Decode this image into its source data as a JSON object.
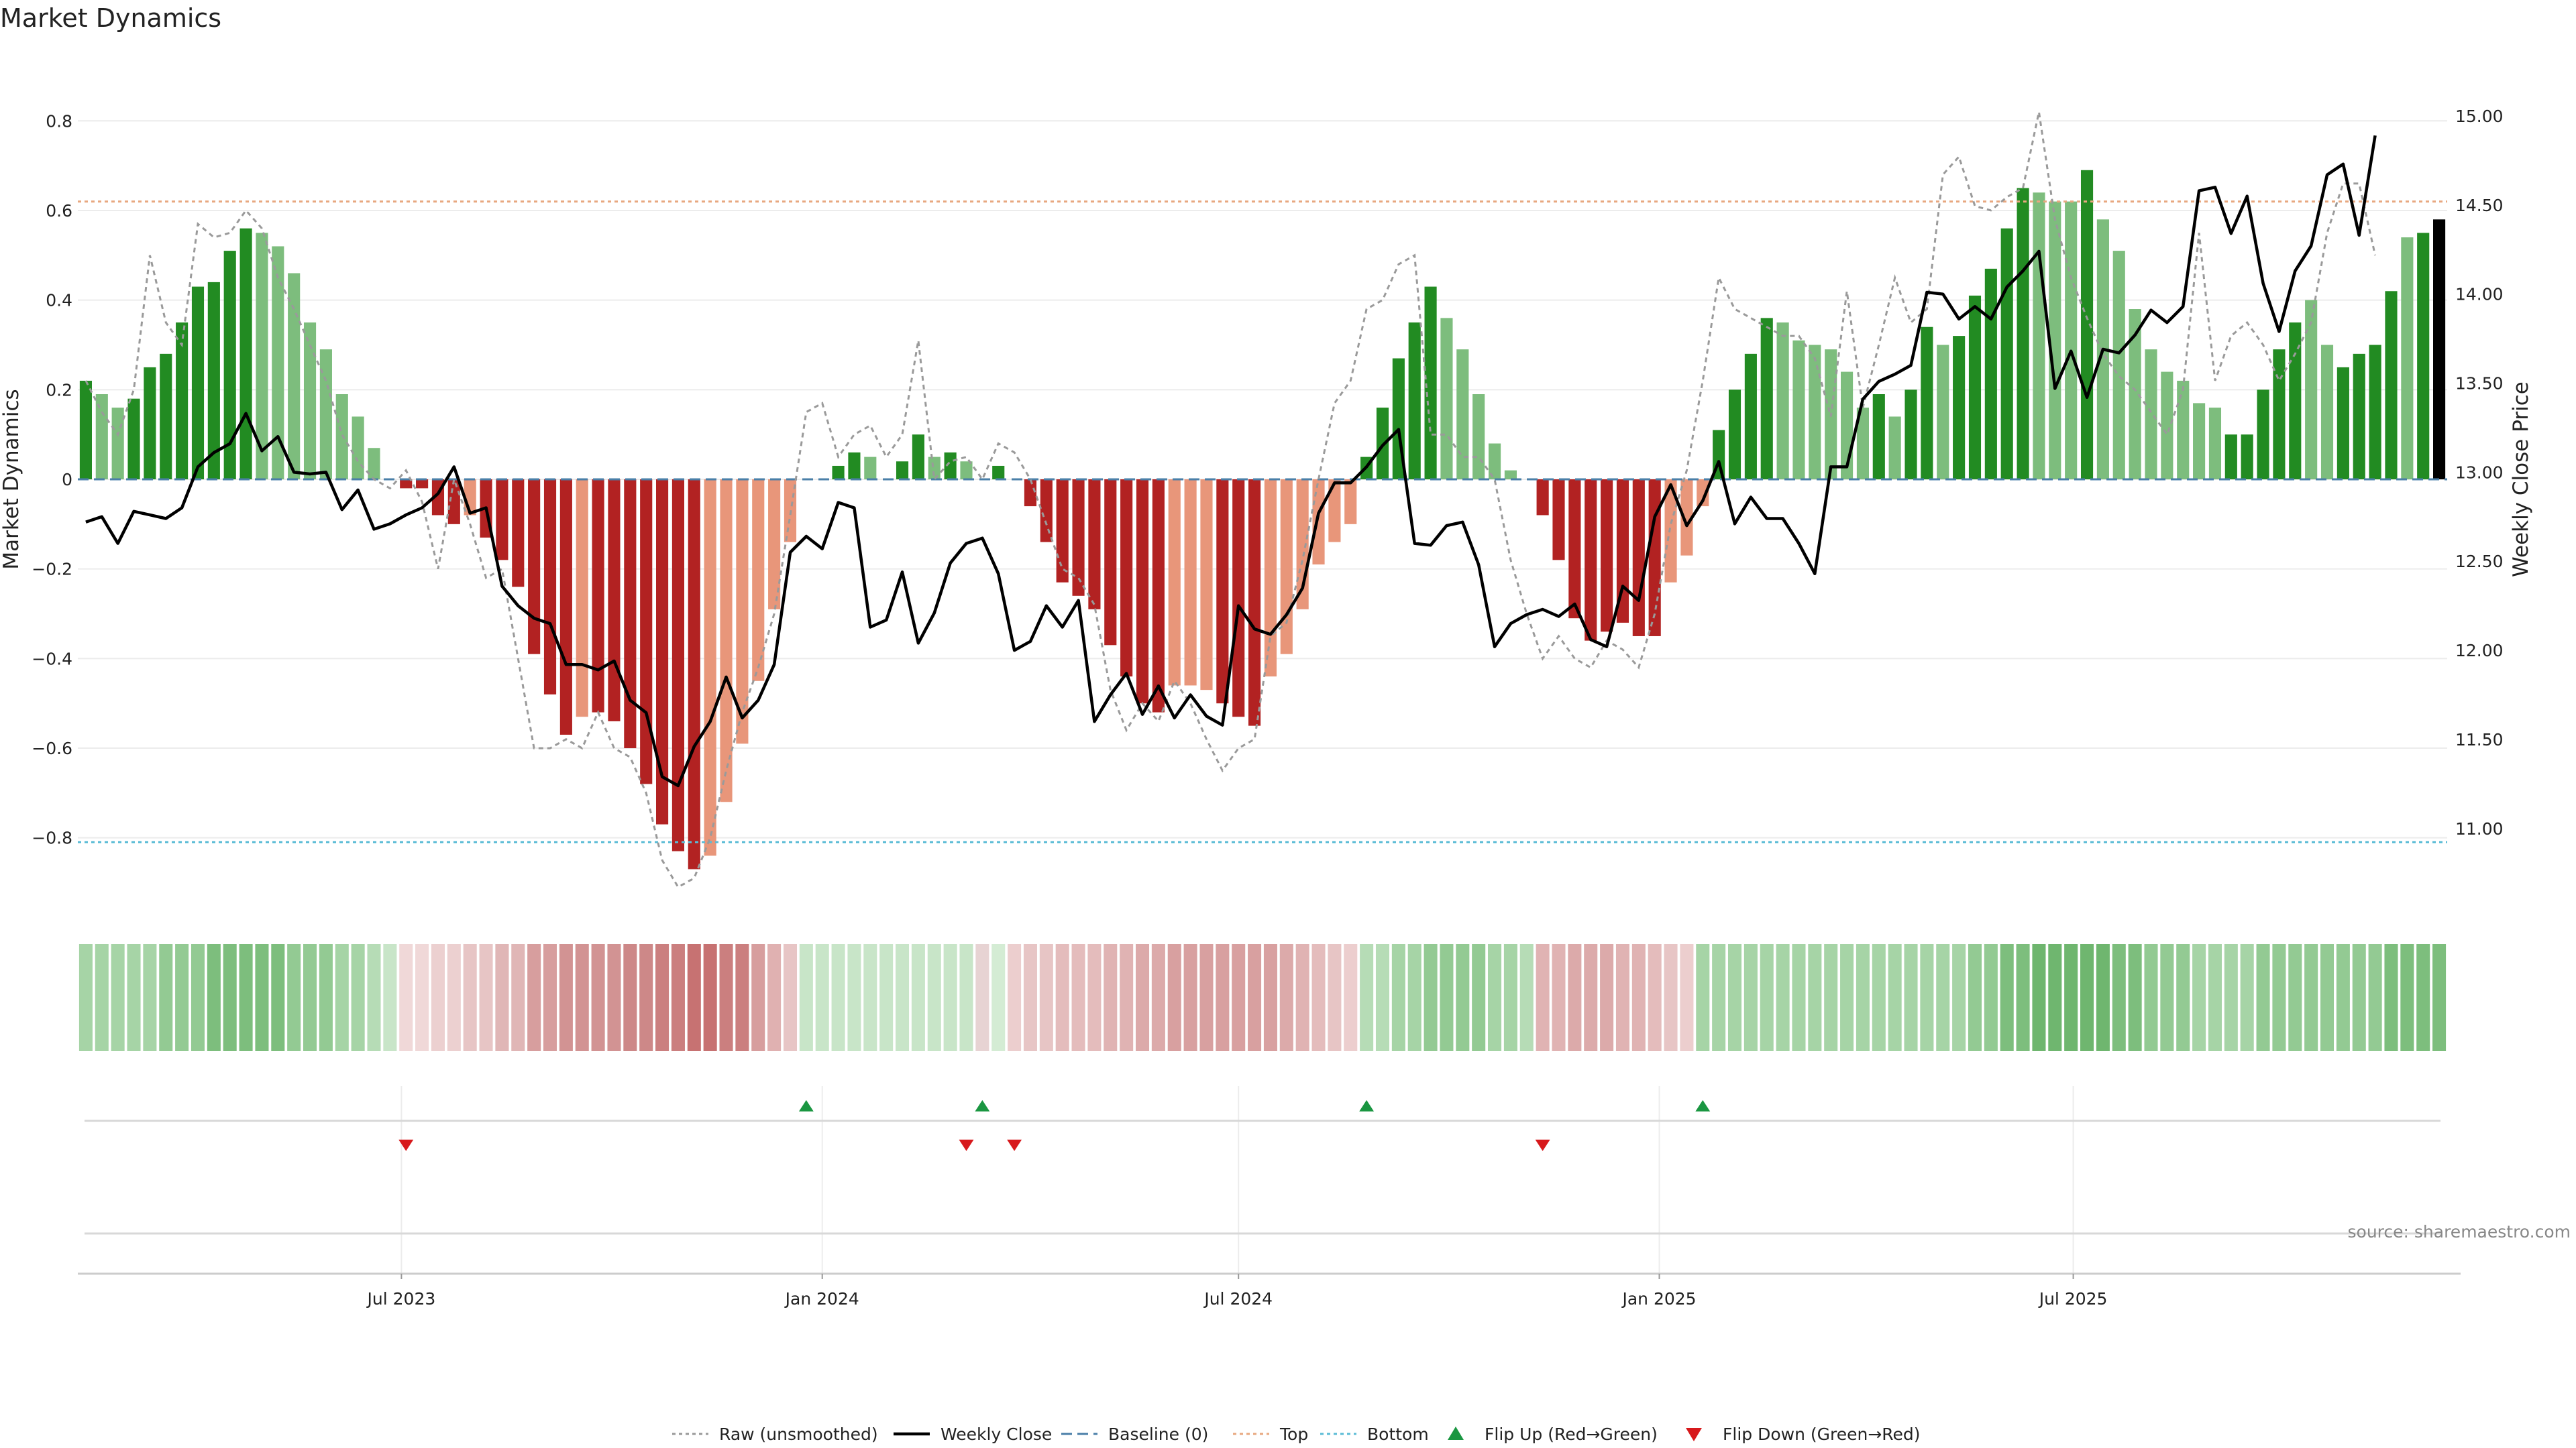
{
  "chart_data": {
    "type": "bar",
    "title": "Market Dynamics",
    "ylabel_left": "Market Dynamics",
    "ylabel_right": "Weekly Close Price",
    "ylim_left": [
      -0.95,
      0.95
    ],
    "ylim_right": [
      10.57,
      15.35
    ],
    "yticks_left": [
      "0.8",
      "0.6",
      "0.4",
      "0.2",
      "0",
      "−0.2",
      "−0.4",
      "−0.6",
      "−0.8"
    ],
    "yticks_left_values": [
      0.8,
      0.6,
      0.4,
      0.2,
      0,
      -0.2,
      -0.4,
      -0.6,
      -0.8
    ],
    "yticks_right": [
      "15.00",
      "14.50",
      "14.00",
      "13.50",
      "13.00",
      "12.50",
      "12.00",
      "11.50",
      "11.00"
    ],
    "yticks_right_values": [
      15.0,
      14.5,
      14.0,
      13.5,
      13.0,
      12.5,
      12.0,
      11.5,
      11.0
    ],
    "x_dates": [
      "2023-02-13",
      "2023-02-20",
      "2023-02-27",
      "2023-03-06",
      "2023-03-13",
      "2023-03-20",
      "2023-03-27",
      "2023-04-03",
      "2023-04-10",
      "2023-04-17",
      "2023-04-24",
      "2023-05-01",
      "2023-05-08",
      "2023-05-15",
      "2023-05-22",
      "2023-05-29",
      "2023-06-05",
      "2023-06-12",
      "2023-06-19",
      "2023-06-26",
      "2023-07-03",
      "2023-07-10",
      "2023-07-17",
      "2023-07-24",
      "2023-07-31",
      "2023-08-07",
      "2023-08-14",
      "2023-08-21",
      "2023-08-28",
      "2023-09-04",
      "2023-09-11",
      "2023-09-18",
      "2023-09-25",
      "2023-10-02",
      "2023-10-09",
      "2023-10-16",
      "2023-10-23",
      "2023-10-30",
      "2023-11-06",
      "2023-11-13",
      "2023-11-20",
      "2023-11-27",
      "2023-12-04",
      "2023-12-11",
      "2023-12-18",
      "2023-12-25",
      "2024-01-01",
      "2024-01-08",
      "2024-01-15",
      "2024-01-22",
      "2024-01-29",
      "2024-02-05",
      "2024-02-12",
      "2024-02-19",
      "2024-02-26",
      "2024-03-04",
      "2024-03-11",
      "2024-03-18",
      "2024-03-25",
      "2024-04-01",
      "2024-04-08",
      "2024-04-15",
      "2024-04-22",
      "2024-04-29",
      "2024-05-06",
      "2024-05-13",
      "2024-05-20",
      "2024-05-27",
      "2024-06-03",
      "2024-06-10",
      "2024-06-17",
      "2024-06-24",
      "2024-07-01",
      "2024-07-08",
      "2024-07-15",
      "2024-07-22",
      "2024-07-29",
      "2024-08-05",
      "2024-08-12",
      "2024-08-19",
      "2024-08-26",
      "2024-09-02",
      "2024-09-09",
      "2024-09-16",
      "2024-09-23",
      "2024-09-30",
      "2024-10-07",
      "2024-10-14",
      "2024-10-21",
      "2024-10-28",
      "2024-11-04",
      "2024-11-11",
      "2024-11-18",
      "2024-11-25",
      "2024-12-02",
      "2024-12-09",
      "2024-12-16",
      "2024-12-23",
      "2024-12-30",
      "2025-01-06",
      "2025-01-13",
      "2025-01-20",
      "2025-01-27",
      "2025-02-03",
      "2025-02-10",
      "2025-02-17",
      "2025-02-24",
      "2025-03-03",
      "2025-03-10",
      "2025-03-17",
      "2025-03-24",
      "2025-03-31",
      "2025-04-07",
      "2025-04-14",
      "2025-04-21",
      "2025-04-28",
      "2025-05-05",
      "2025-05-12",
      "2025-05-19",
      "2025-05-26",
      "2025-06-02",
      "2025-06-09",
      "2025-06-16",
      "2025-06-23",
      "2025-06-30",
      "2025-07-07",
      "2025-07-14",
      "2025-07-21",
      "2025-07-28",
      "2025-08-04",
      "2025-08-11",
      "2025-08-18",
      "2025-08-25",
      "2025-09-01",
      "2025-09-08",
      "2025-09-15",
      "2025-09-22",
      "2025-09-29",
      "2025-10-06",
      "2025-10-13",
      "2025-10-20",
      "2025-10-27",
      "2025-11-03",
      "2025-11-10",
      "2025-11-17"
    ],
    "x_ticks": [
      {
        "date": "2023-07-01",
        "label": "Jul 2023"
      },
      {
        "date": "2024-01-01",
        "label": "Jan 2024"
      },
      {
        "date": "2024-07-01",
        "label": "Jul 2024"
      },
      {
        "date": "2025-01-01",
        "label": "Jan 2025"
      },
      {
        "date": "2025-07-01",
        "label": "Jul 2025"
      }
    ],
    "dynamics": [
      0.22,
      0.19,
      0.16,
      0.18,
      0.25,
      0.28,
      0.35,
      0.43,
      0.44,
      0.51,
      0.56,
      0.55,
      0.52,
      0.46,
      0.35,
      0.29,
      0.19,
      0.14,
      0.07,
      0.0,
      -0.02,
      -0.02,
      -0.08,
      -0.1,
      -0.08,
      -0.13,
      -0.18,
      -0.24,
      -0.39,
      -0.48,
      -0.57,
      -0.53,
      -0.52,
      -0.54,
      -0.6,
      -0.68,
      -0.77,
      -0.83,
      -0.87,
      -0.84,
      -0.72,
      -0.59,
      -0.45,
      -0.29,
      -0.14,
      0.0,
      0.0,
      0.03,
      0.06,
      0.05,
      0.0,
      0.04,
      0.1,
      0.05,
      0.06,
      0.04,
      0.0,
      0.03,
      0.0,
      -0.06,
      -0.14,
      -0.23,
      -0.26,
      -0.29,
      -0.37,
      -0.44,
      -0.5,
      -0.52,
      -0.46,
      -0.46,
      -0.47,
      -0.5,
      -0.53,
      -0.55,
      -0.44,
      -0.39,
      -0.29,
      -0.19,
      -0.14,
      -0.1,
      0.05,
      0.16,
      0.27,
      0.35,
      0.43,
      0.36,
      0.29,
      0.19,
      0.08,
      0.02,
      0.0,
      -0.08,
      -0.18,
      -0.31,
      -0.36,
      -0.34,
      -0.32,
      -0.35,
      -0.35,
      -0.23,
      -0.17,
      -0.06,
      0.11,
      0.2,
      0.28,
      0.36,
      0.35,
      0.31,
      0.3,
      0.29,
      0.24,
      0.16,
      0.19,
      0.14,
      0.2,
      0.34,
      0.3,
      0.32,
      0.41,
      0.47,
      0.56,
      0.65,
      0.64,
      0.62,
      0.62,
      0.69,
      0.58,
      0.51,
      0.38,
      0.29,
      0.24,
      0.22,
      0.17,
      0.16,
      0.1,
      0.1,
      0.2,
      0.29,
      0.35,
      0.4,
      0.3,
      0.25,
      0.28,
      0.3,
      0.42,
      0.54,
      0.55,
      0.58
    ],
    "dynamics_colors": [
      "#228b22",
      "#7dbd7d",
      "#7dbd7d",
      "#228b22",
      "#228b22",
      "#228b22",
      "#228b22",
      "#228b22",
      "#228b22",
      "#228b22",
      "#228b22",
      "#7dbd7d",
      "#7dbd7d",
      "#7dbd7d",
      "#7dbd7d",
      "#7dbd7d",
      "#7dbd7d",
      "#7dbd7d",
      "#7dbd7d",
      "#7dbd7d",
      "#b22222",
      "#b22222",
      "#b22222",
      "#b22222",
      "#e8967a",
      "#b22222",
      "#b22222",
      "#b22222",
      "#b22222",
      "#b22222",
      "#b22222",
      "#e8967a",
      "#b22222",
      "#b22222",
      "#b22222",
      "#b22222",
      "#b22222",
      "#b22222",
      "#b22222",
      "#e8967a",
      "#e8967a",
      "#e8967a",
      "#e8967a",
      "#e8967a",
      "#e8967a",
      "#e8967a",
      "#e8967a",
      "#228b22",
      "#228b22",
      "#7dbd7d",
      "#7dbd7d",
      "#228b22",
      "#228b22",
      "#7dbd7d",
      "#228b22",
      "#7dbd7d",
      "#7dbd7d",
      "#228b22",
      "#7dbd7d",
      "#b22222",
      "#b22222",
      "#b22222",
      "#b22222",
      "#b22222",
      "#b22222",
      "#b22222",
      "#b22222",
      "#b22222",
      "#e8967a",
      "#e8967a",
      "#e8967a",
      "#b22222",
      "#b22222",
      "#b22222",
      "#e8967a",
      "#e8967a",
      "#e8967a",
      "#e8967a",
      "#e8967a",
      "#e8967a",
      "#228b22",
      "#228b22",
      "#228b22",
      "#228b22",
      "#228b22",
      "#7dbd7d",
      "#7dbd7d",
      "#7dbd7d",
      "#7dbd7d",
      "#7dbd7d",
      "#7dbd7d",
      "#b22222",
      "#b22222",
      "#b22222",
      "#b22222",
      "#b22222",
      "#b22222",
      "#b22222",
      "#b22222",
      "#e8967a",
      "#e8967a",
      "#e8967a",
      "#228b22",
      "#228b22",
      "#228b22",
      "#228b22",
      "#7dbd7d",
      "#7dbd7d",
      "#7dbd7d",
      "#7dbd7d",
      "#7dbd7d",
      "#7dbd7d",
      "#228b22",
      "#7dbd7d",
      "#228b22",
      "#228b22",
      "#7dbd7d",
      "#228b22",
      "#228b22",
      "#228b22",
      "#228b22",
      "#228b22",
      "#7dbd7d",
      "#7dbd7d",
      "#7dbd7d",
      "#228b22",
      "#7dbd7d",
      "#7dbd7d",
      "#7dbd7d",
      "#7dbd7d",
      "#7dbd7d",
      "#7dbd7d",
      "#7dbd7d",
      "#7dbd7d",
      "#228b22",
      "#228b22",
      "#228b22",
      "#228b22",
      "#228b22",
      "#7dbd7d",
      "#7dbd7d",
      "#228b22",
      "#228b22",
      "#228b22",
      "#228b22",
      "#7dbd7d",
      "#228b22"
    ],
    "raw": [
      0.22,
      0.15,
      0.1,
      0.2,
      0.5,
      0.35,
      0.3,
      0.57,
      0.54,
      0.55,
      0.6,
      0.56,
      0.45,
      0.38,
      0.3,
      0.22,
      0.1,
      0.04,
      0.0,
      -0.02,
      0.02,
      -0.05,
      -0.2,
      0.0,
      -0.1,
      -0.22,
      -0.2,
      -0.4,
      -0.6,
      -0.6,
      -0.58,
      -0.6,
      -0.52,
      -0.6,
      -0.62,
      -0.7,
      -0.85,
      -0.91,
      -0.89,
      -0.8,
      -0.65,
      -0.52,
      -0.42,
      -0.3,
      -0.08,
      0.15,
      0.17,
      0.05,
      0.1,
      0.12,
      0.05,
      0.1,
      0.31,
      0.0,
      0.04,
      0.05,
      0.0,
      0.08,
      0.06,
      0.0,
      -0.1,
      -0.2,
      -0.22,
      -0.28,
      -0.47,
      -0.56,
      -0.5,
      -0.54,
      -0.45,
      -0.5,
      -0.58,
      -0.65,
      -0.6,
      -0.58,
      -0.35,
      -0.32,
      -0.18,
      0.0,
      0.17,
      0.22,
      0.38,
      0.4,
      0.48,
      0.5,
      0.1,
      0.1,
      0.05,
      0.05,
      0.0,
      -0.18,
      -0.3,
      -0.4,
      -0.35,
      -0.4,
      -0.42,
      -0.36,
      -0.38,
      -0.42,
      -0.3,
      -0.1,
      0.02,
      0.22,
      0.45,
      0.38,
      0.36,
      0.34,
      0.32,
      0.32,
      0.27,
      0.14,
      0.42,
      0.16,
      0.3,
      0.45,
      0.35,
      0.38,
      0.68,
      0.72,
      0.61,
      0.6,
      0.63,
      0.65,
      0.82,
      0.58,
      0.45,
      0.36,
      0.28,
      0.23,
      0.2,
      0.15,
      0.1,
      0.2,
      0.55,
      0.22,
      0.32,
      0.35,
      0.3,
      0.22,
      0.28,
      0.35,
      0.55,
      0.66,
      0.66,
      0.5
    ],
    "price": [
      12.72,
      12.75,
      12.6,
      12.78,
      12.76,
      12.74,
      12.8,
      13.03,
      13.11,
      13.16,
      13.33,
      13.12,
      13.2,
      13.0,
      12.99,
      13.0,
      12.79,
      12.9,
      12.68,
      12.71,
      12.76,
      12.8,
      12.88,
      13.03,
      12.77,
      12.8,
      12.36,
      12.25,
      12.18,
      12.15,
      11.92,
      11.92,
      11.89,
      11.94,
      11.72,
      11.65,
      11.29,
      11.24,
      11.46,
      11.6,
      11.85,
      11.62,
      11.72,
      11.92,
      12.55,
      12.64,
      12.57,
      12.83,
      12.8,
      12.13,
      12.17,
      12.44,
      12.04,
      12.21,
      12.49,
      12.6,
      12.63,
      12.43,
      12.0,
      12.05,
      12.25,
      12.13,
      12.28,
      11.6,
      11.75,
      11.87,
      11.64,
      11.8,
      11.62,
      11.75,
      11.63,
      11.58,
      12.25,
      12.12,
      12.09,
      12.2,
      12.35,
      12.77,
      12.94,
      12.94,
      13.03,
      13.15,
      13.24,
      12.6,
      12.59,
      12.7,
      12.72,
      12.48,
      12.02,
      12.15,
      12.2,
      12.23,
      12.19,
      12.26,
      12.06,
      12.02,
      12.36,
      12.28,
      12.75,
      12.93,
      12.7,
      12.84,
      13.06,
      12.71,
      12.86,
      12.74,
      12.74,
      12.6,
      12.43,
      13.03,
      13.03,
      13.41,
      13.51,
      13.55,
      13.6,
      14.01,
      14.0,
      13.86,
      13.93,
      13.86,
      14.04,
      14.13,
      14.24,
      13.47,
      13.68,
      13.42,
      13.69,
      13.67,
      13.77,
      13.91,
      13.84,
      13.93,
      14.58,
      14.6,
      14.34,
      14.55,
      14.06,
      13.79,
      14.13,
      14.27,
      14.67,
      14.73,
      14.33,
      14.89
    ],
    "top_line": 0.62,
    "bottom_line": -0.81,
    "heat_colors": [
      "#a6d4a6",
      "#a6d4a6",
      "#a6d4a6",
      "#a6d4a6",
      "#a6d4a6",
      "#93ca93",
      "#93ca93",
      "#93ca93",
      "#7dbe7d",
      "#7dbe7d",
      "#7dbe7d",
      "#7dbe7d",
      "#7dbe7d",
      "#93ca93",
      "#93ca93",
      "#93ca93",
      "#a6d4a6",
      "#a6d4a6",
      "#b6dcb6",
      "#c8e5c8",
      "#f0d8d8",
      "#f0d8d8",
      "#ecd0d0",
      "#ecd0d0",
      "#e7c5c5",
      "#e7c5c5",
      "#e0b6b6",
      "#e0b6b6",
      "#d79e9e",
      "#d79e9e",
      "#d29393",
      "#d29393",
      "#d29393",
      "#d29393",
      "#cd8888",
      "#cd8888",
      "#cb7f7f",
      "#cb7f7f",
      "#c77272",
      "#c77272",
      "#cb7f7f",
      "#cb7f7f",
      "#d79e9e",
      "#e0b1b1",
      "#e7c5c5",
      "#c8e5c8",
      "#c8e5c8",
      "#c8e5c8",
      "#c8e5c8",
      "#c8e5c8",
      "#c8e5c8",
      "#c8e5c8",
      "#c8e5c8",
      "#c8e5c8",
      "#c8e5c8",
      "#c8e5c8",
      "#e7d3d3",
      "#d4ecd4",
      "#eccece",
      "#e7c5c5",
      "#e7c5c5",
      "#e4bcbc",
      "#e4bcbc",
      "#e4bcbc",
      "#e0b3b3",
      "#e0b3b3",
      "#dcaaaa",
      "#dcaaaa",
      "#d8a0a0",
      "#d8a0a0",
      "#d8a0a0",
      "#d8a0a0",
      "#d8a0a0",
      "#d8a0a0",
      "#d8a0a0",
      "#dcaaaa",
      "#e0b3b3",
      "#e4bcbc",
      "#e7c5c5",
      "#eccece",
      "#b6dcb6",
      "#b6dcb6",
      "#a6d4a6",
      "#a6d4a6",
      "#93ca93",
      "#93ca93",
      "#93ca93",
      "#93ca93",
      "#a6d4a6",
      "#a6d4a6",
      "#b6dcb6",
      "#e0b3b3",
      "#e0b3b3",
      "#dcaaaa",
      "#dcaaaa",
      "#dcaaaa",
      "#e0b3b3",
      "#e0b3b3",
      "#e4bcbc",
      "#e7c5c5",
      "#eccece",
      "#a6d4a6",
      "#a6d4a6",
      "#a6d4a6",
      "#a6d4a6",
      "#a6d4a6",
      "#a6d4a6",
      "#a6d4a6",
      "#a6d4a6",
      "#a6d4a6",
      "#a6d4a6",
      "#a6d4a6",
      "#a6d4a6",
      "#a6d4a6",
      "#a6d4a6",
      "#a6d4a6",
      "#a6d4a6",
      "#a6d4a6",
      "#93ca93",
      "#93ca93",
      "#7dbe7d",
      "#7dbe7d",
      "#6fb66f",
      "#6fb66f",
      "#6fb66f",
      "#6fb66f",
      "#6fb66f",
      "#7dbe7d",
      "#7dbe7d",
      "#93ca93",
      "#93ca93",
      "#93ca93",
      "#a6d4a6",
      "#a6d4a6",
      "#a6d4a6",
      "#a6d4a6",
      "#93ca93",
      "#93ca93",
      "#93ca93",
      "#93ca93",
      "#93ca93",
      "#93ca93",
      "#93ca93",
      "#93ca93",
      "#7dbe7d",
      "#7dbe7d",
      "#7dbe7d",
      "#7dbe7d"
    ],
    "flip_up_indices": [
      45,
      56,
      80,
      101
    ],
    "flip_down_indices": [
      20,
      55,
      58,
      91
    ],
    "legend": [
      {
        "label": "Raw (unsmoothed)",
        "style": "dotted-line",
        "color": "#999999"
      },
      {
        "label": "Weekly Close",
        "style": "solid-line",
        "color": "#000000"
      },
      {
        "label": "Baseline (0)",
        "style": "dashed-line",
        "color": "#4a7fa8"
      },
      {
        "label": "Top",
        "style": "dotted-line",
        "color": "#e8a880"
      },
      {
        "label": "Bottom",
        "style": "dotted-line",
        "color": "#5bbcd6"
      },
      {
        "label": "Flip Up (Red→Green)",
        "style": "triangle-up",
        "color": "#1a9641"
      },
      {
        "label": "Flip Down (Green→Red)",
        "style": "triangle-down",
        "color": "#d7191c"
      }
    ],
    "legend_position": "bottom-center",
    "source": "source: sharemaestro.com",
    "grid": true
  }
}
